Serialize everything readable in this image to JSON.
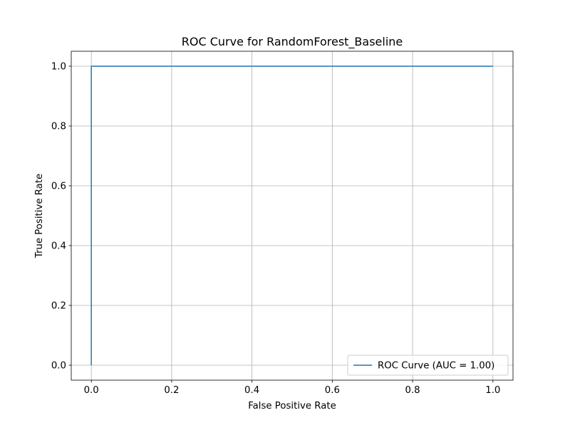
{
  "chart_data": {
    "type": "line",
    "title": "ROC Curve for RandomForest_Baseline",
    "xlabel": "False Positive Rate",
    "ylabel": "True Positive Rate",
    "xlim": [
      -0.05,
      1.05
    ],
    "ylim": [
      -0.05,
      1.05
    ],
    "xticks": [
      "0.0",
      "0.2",
      "0.4",
      "0.6",
      "0.8",
      "1.0"
    ],
    "yticks": [
      "0.0",
      "0.2",
      "0.4",
      "0.6",
      "0.8",
      "1.0"
    ],
    "grid": true,
    "legend_position": "lower-right",
    "series": [
      {
        "name": "ROC Curve (AUC = 1.00)",
        "color": "#1f77b4",
        "x": [
          0.0,
          0.0,
          1.0
        ],
        "y": [
          0.0,
          1.0,
          1.0
        ]
      }
    ]
  }
}
